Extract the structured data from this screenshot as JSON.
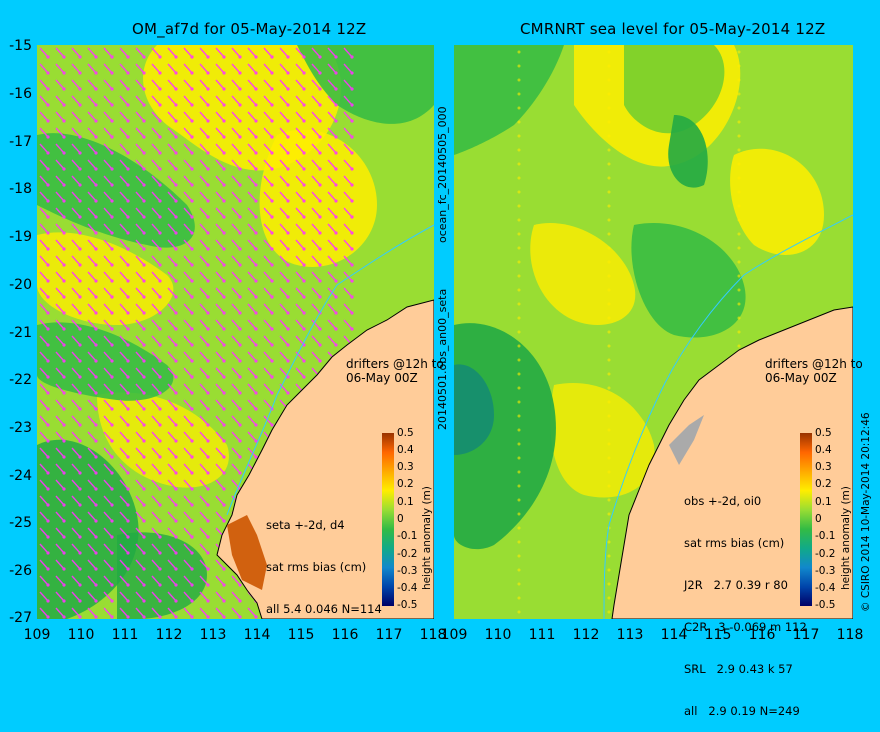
{
  "left_panel": {
    "title": "OM_af7d for 05-May-2014 12Z",
    "y_ticks": [
      "-15",
      "-16",
      "-17",
      "-18",
      "-19",
      "-20",
      "-21",
      "-22",
      "-23",
      "-24",
      "-25",
      "-26",
      "-27"
    ],
    "x_ticks": [
      "109",
      "110",
      "111",
      "112",
      "113",
      "114",
      "115",
      "116",
      "117",
      "118"
    ],
    "drifters_label_1": "drifters @12h to",
    "drifters_label_2": "06-May 00Z",
    "stats_line1": "seta +-2d, d4",
    "stats_line2": "sat rms bias (cm)",
    "stats_line3": "all 5.4 0.046 N=114",
    "colorbar_label": "height anomaly (m)"
  },
  "right_panel": {
    "title": "CMRNRT sea level  for 05-May-2014 12Z",
    "x_ticks": [
      "109",
      "110",
      "111",
      "112",
      "113",
      "114",
      "115",
      "116",
      "117",
      "118"
    ],
    "side_label_top": "ocean_fc_20140505_000",
    "side_label_bottom": "20140501.obs_an00_seta",
    "drifters_label_1": "drifters @12h to",
    "drifters_label_2": "06-May 00Z",
    "stats_line1": "obs +-2d, oi0",
    "stats_line2": "sat rms bias (cm)",
    "stats_row1": "J2R   2.7 0.39 r 80",
    "stats_row2": "C2R   3 -0.069 m 112",
    "stats_row3": "SRL   2.9 0.43 k 57",
    "stats_row4": "all   2.9 0.19 N=249",
    "colorbar_label": "height anomaly (m)",
    "credit": "© CSIRO 2014   10-May-2014 20:12:46"
  },
  "colorbar_ticks": [
    "0.5",
    "0.4",
    "0.3",
    "0.2",
    "0.1",
    "0",
    "-0.1",
    "-0.2",
    "-0.3",
    "-0.4",
    "-0.5"
  ],
  "colors": {
    "background": "#00ccff",
    "land": "#ffcc99",
    "ssh_low": "#009933",
    "ssh_mid": "#99dd33",
    "ssh_high": "#ffee00",
    "arrows": "#ff33ff",
    "drifter": "#ff00ff",
    "isobath": "#33ccff"
  }
}
